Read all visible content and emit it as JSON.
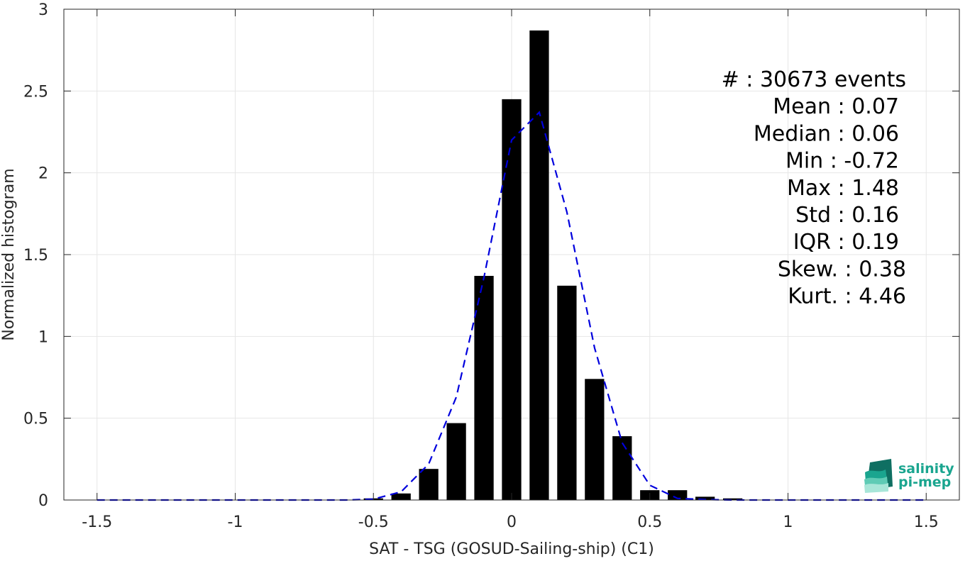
{
  "chart_data": {
    "type": "bar",
    "xlabel": "SAT - TSG (GOSUD-Sailing-ship) (C1)",
    "ylabel": "Normalized histogram",
    "xlim": [
      -1.62,
      1.62
    ],
    "ylim": [
      0,
      3
    ],
    "xticks": [
      -1.5,
      -1,
      -0.5,
      0,
      0.5,
      1,
      1.5
    ],
    "xtick_labels": [
      "-1.5",
      "-1",
      "-0.5",
      "0",
      "0.5",
      "1",
      "1.5"
    ],
    "yticks": [
      0,
      0.5,
      1,
      1.5,
      2,
      2.5,
      3
    ],
    "ytick_labels": [
      "0",
      "0.5",
      "1",
      "1.5",
      "2",
      "2.5",
      "3"
    ],
    "grid": true,
    "bar_width": 0.07,
    "bar_color": "#000000",
    "bars": {
      "x": [
        -0.5,
        -0.4,
        -0.3,
        -0.2,
        -0.1,
        0.0,
        0.1,
        0.2,
        0.3,
        0.4,
        0.5,
        0.6,
        0.7,
        0.8
      ],
      "values": [
        0.01,
        0.04,
        0.19,
        0.47,
        1.37,
        2.45,
        2.87,
        1.31,
        0.74,
        0.39,
        0.06,
        0.06,
        0.02,
        0.01
      ]
    },
    "fit_line": {
      "color": "#0000dd",
      "style": "dashed",
      "x": [
        -1.5,
        -1.2,
        -1.0,
        -0.8,
        -0.6,
        -0.5,
        -0.4,
        -0.3,
        -0.2,
        -0.1,
        0.0,
        0.1,
        0.2,
        0.3,
        0.4,
        0.5,
        0.6,
        0.7,
        0.8,
        1.0,
        1.2,
        1.5
      ],
      "y": [
        0,
        0,
        0,
        0,
        0,
        0.005,
        0.05,
        0.22,
        0.63,
        1.36,
        2.2,
        2.37,
        1.76,
        0.93,
        0.35,
        0.09,
        0.01,
        0.003,
        0,
        0,
        0,
        0
      ]
    },
    "annotations": [
      "#  : 30673 events",
      "Mean : 0.07",
      "Median : 0.06",
      "Min : -0.72",
      "Max : 1.48",
      "Std : 0.16",
      "IQR : 0.19",
      "Skew. : 0.38",
      "Kurt. : 4.46"
    ]
  },
  "logo": {
    "line1": "salinity",
    "line2": "pi-mep"
  },
  "colors": {
    "logo_accent": "#1aa58f",
    "logo_dark": "#0f6f62"
  }
}
